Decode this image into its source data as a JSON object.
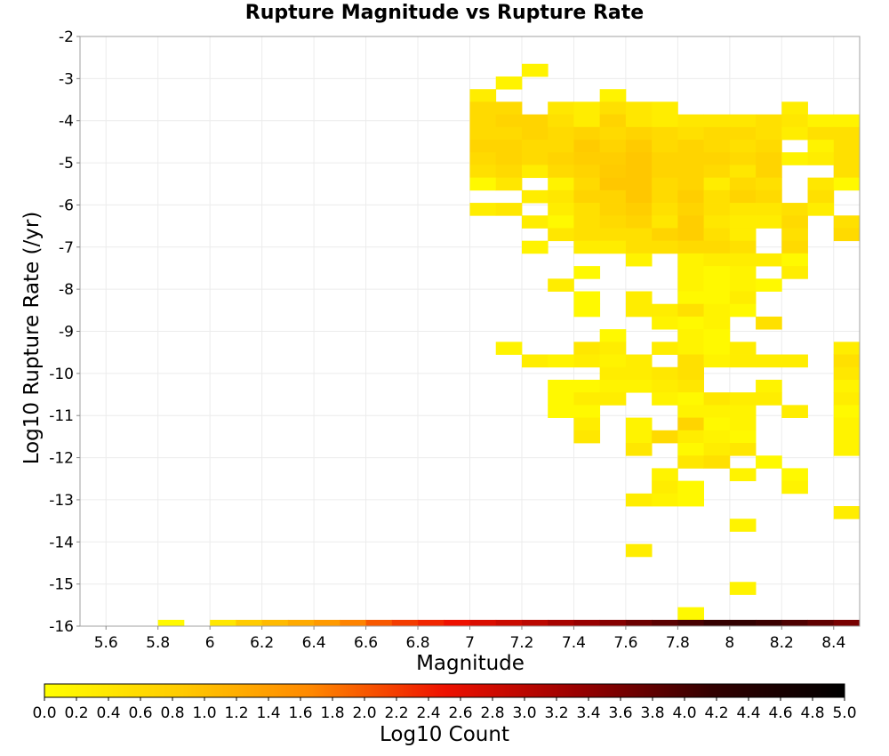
{
  "chart_data": {
    "type": "heatmap",
    "title": "Rupture Magnitude vs Rupture Rate",
    "xlabel": "Magnitude",
    "ylabel": "Log10 Rupture Rate (/yr)",
    "xlim": [
      5.5,
      8.5
    ],
    "ylim": [
      -16,
      -2
    ],
    "x_ticks": [
      "5.6",
      "5.8",
      "6",
      "6.2",
      "6.4",
      "6.6",
      "6.8",
      "7",
      "7.2",
      "7.4",
      "7.6",
      "7.8",
      "8",
      "8.2",
      "8.4"
    ],
    "y_ticks": [
      "-2",
      "-3",
      "-4",
      "-5",
      "-6",
      "-7",
      "-8",
      "-9",
      "-10",
      "-11",
      "-12",
      "-13",
      "-14",
      "-15",
      "-16"
    ],
    "bin_width_x": 0.1,
    "bin_height_y": 0.3,
    "grid": true,
    "colorbar": {
      "label": "Log10 Count",
      "range": [
        0,
        5
      ],
      "colors": [
        "#ffff00",
        "#ffcc00",
        "#ff8800",
        "#ee1100",
        "#990000",
        "#330000",
        "#000000"
      ],
      "ticks": [
        "0.0",
        "0.2",
        "0.4",
        "0.6",
        "0.8",
        "1.0",
        "1.2",
        "1.4",
        "1.6",
        "1.8",
        "2.0",
        "2.2",
        "2.4",
        "2.6",
        "2.8",
        "3.0",
        "3.2",
        "3.4",
        "3.6",
        "3.8",
        "4.0",
        "4.2",
        "4.4",
        "4.6",
        "4.8",
        "5.0"
      ]
    },
    "bottom_row": {
      "y": -16,
      "cells": [
        [
          5.8,
          0.1
        ],
        [
          6.0,
          0.4
        ],
        [
          6.1,
          0.85
        ],
        [
          6.2,
          1.05
        ],
        [
          6.3,
          1.25
        ],
        [
          6.4,
          1.45
        ],
        [
          6.5,
          1.7
        ],
        [
          6.6,
          2.0
        ],
        [
          6.7,
          2.2
        ],
        [
          6.8,
          2.35
        ],
        [
          6.9,
          2.5
        ],
        [
          7.0,
          2.7
        ],
        [
          7.1,
          2.85
        ],
        [
          7.2,
          3.0
        ],
        [
          7.3,
          3.2
        ],
        [
          7.4,
          3.35
        ],
        [
          7.5,
          3.5
        ],
        [
          7.6,
          3.7
        ],
        [
          7.7,
          3.85
        ],
        [
          7.8,
          4.0
        ],
        [
          7.9,
          4.15
        ],
        [
          8.0,
          4.2
        ],
        [
          8.1,
          4.1
        ],
        [
          8.2,
          3.95
        ],
        [
          8.3,
          3.8
        ],
        [
          8.4,
          3.6
        ]
      ]
    },
    "cells": [
      [
        7.2,
        -2.8,
        0.2
      ],
      [
        7.1,
        -3.1,
        0.2
      ],
      [
        7.0,
        -3.4,
        0.3
      ],
      [
        7.5,
        -3.4,
        0.2
      ],
      [
        7.0,
        -3.7,
        0.6
      ],
      [
        7.1,
        -3.7,
        0.6
      ],
      [
        7.3,
        -3.7,
        0.4
      ],
      [
        7.4,
        -3.7,
        0.3
      ],
      [
        7.5,
        -3.7,
        0.5
      ],
      [
        7.6,
        -3.7,
        0.4
      ],
      [
        7.7,
        -3.7,
        0.3
      ],
      [
        8.2,
        -3.7,
        0.3
      ],
      [
        7.0,
        -4.0,
        0.6
      ],
      [
        7.1,
        -4.0,
        0.7
      ],
      [
        7.2,
        -4.0,
        0.7
      ],
      [
        7.3,
        -4.0,
        0.5
      ],
      [
        7.4,
        -4.0,
        0.3
      ],
      [
        7.5,
        -4.0,
        0.7
      ],
      [
        7.6,
        -4.0,
        0.4
      ],
      [
        7.7,
        -4.0,
        0.3
      ],
      [
        7.8,
        -4.0,
        0.4
      ],
      [
        7.9,
        -4.0,
        0.4
      ],
      [
        8.0,
        -4.0,
        0.4
      ],
      [
        8.1,
        -4.0,
        0.5
      ],
      [
        8.2,
        -4.0,
        0.4
      ],
      [
        8.3,
        -4.0,
        0.2
      ],
      [
        8.4,
        -4.0,
        0.2
      ],
      [
        7.0,
        -4.3,
        0.6
      ],
      [
        7.1,
        -4.3,
        0.6
      ],
      [
        7.2,
        -4.3,
        0.7
      ],
      [
        7.3,
        -4.3,
        0.6
      ],
      [
        7.4,
        -4.3,
        0.7
      ],
      [
        7.5,
        -4.3,
        0.6
      ],
      [
        7.6,
        -4.3,
        0.7
      ],
      [
        7.7,
        -4.3,
        0.6
      ],
      [
        7.8,
        -4.3,
        0.5
      ],
      [
        7.9,
        -4.3,
        0.6
      ],
      [
        8.0,
        -4.3,
        0.6
      ],
      [
        8.1,
        -4.3,
        0.5
      ],
      [
        8.2,
        -4.3,
        0.3
      ],
      [
        8.3,
        -4.3,
        0.5
      ],
      [
        8.4,
        -4.3,
        0.5
      ],
      [
        7.0,
        -4.6,
        0.7
      ],
      [
        7.1,
        -4.6,
        0.7
      ],
      [
        7.2,
        -4.6,
        0.6
      ],
      [
        7.3,
        -4.6,
        0.6
      ],
      [
        7.4,
        -4.6,
        0.85
      ],
      [
        7.5,
        -4.6,
        0.7
      ],
      [
        7.6,
        -4.6,
        0.85
      ],
      [
        7.7,
        -4.6,
        0.6
      ],
      [
        7.8,
        -4.6,
        0.7
      ],
      [
        7.9,
        -4.6,
        0.6
      ],
      [
        8.0,
        -4.6,
        0.5
      ],
      [
        8.1,
        -4.6,
        0.6
      ],
      [
        8.3,
        -4.6,
        0.2
      ],
      [
        8.4,
        -4.6,
        0.5
      ],
      [
        7.0,
        -4.9,
        0.6
      ],
      [
        7.1,
        -4.9,
        0.7
      ],
      [
        7.2,
        -4.9,
        0.6
      ],
      [
        7.3,
        -4.9,
        0.7
      ],
      [
        7.4,
        -4.9,
        0.8
      ],
      [
        7.5,
        -4.9,
        0.8
      ],
      [
        7.6,
        -4.9,
        0.9
      ],
      [
        7.7,
        -4.9,
        0.7
      ],
      [
        7.8,
        -4.9,
        0.7
      ],
      [
        7.9,
        -4.9,
        0.7
      ],
      [
        8.0,
        -4.9,
        0.6
      ],
      [
        8.1,
        -4.9,
        0.7
      ],
      [
        8.2,
        -4.9,
        0.2
      ],
      [
        8.3,
        -4.9,
        0.3
      ],
      [
        8.4,
        -4.9,
        0.5
      ],
      [
        7.0,
        -5.2,
        0.5
      ],
      [
        7.1,
        -5.2,
        0.6
      ],
      [
        7.2,
        -5.2,
        0.3
      ],
      [
        7.3,
        -5.2,
        0.6
      ],
      [
        7.4,
        -5.2,
        0.7
      ],
      [
        7.5,
        -5.2,
        0.85
      ],
      [
        7.6,
        -5.2,
        0.9
      ],
      [
        7.7,
        -5.2,
        0.7
      ],
      [
        7.8,
        -5.2,
        0.7
      ],
      [
        7.9,
        -5.2,
        0.6
      ],
      [
        8.0,
        -5.2,
        0.4
      ],
      [
        8.1,
        -5.2,
        0.7
      ],
      [
        8.4,
        -5.2,
        0.5
      ],
      [
        7.0,
        -5.5,
        0.1
      ],
      [
        7.1,
        -5.5,
        0.4
      ],
      [
        7.3,
        -5.5,
        0.2
      ],
      [
        7.4,
        -5.5,
        0.6
      ],
      [
        7.5,
        -5.5,
        0.9
      ],
      [
        7.6,
        -5.5,
        0.9
      ],
      [
        7.7,
        -5.5,
        0.6
      ],
      [
        7.8,
        -5.5,
        0.7
      ],
      [
        7.9,
        -5.5,
        0.3
      ],
      [
        8.0,
        -5.5,
        0.6
      ],
      [
        8.1,
        -5.5,
        0.5
      ],
      [
        8.3,
        -5.5,
        0.4
      ],
      [
        8.4,
        -5.5,
        0.1
      ],
      [
        7.2,
        -5.8,
        0.3
      ],
      [
        7.3,
        -5.8,
        0.4
      ],
      [
        7.4,
        -5.8,
        0.7
      ],
      [
        7.5,
        -5.8,
        0.7
      ],
      [
        7.6,
        -5.8,
        0.9
      ],
      [
        7.7,
        -5.8,
        0.6
      ],
      [
        7.8,
        -5.8,
        0.8
      ],
      [
        7.9,
        -5.8,
        0.5
      ],
      [
        8.0,
        -5.8,
        0.7
      ],
      [
        8.1,
        -5.8,
        0.6
      ],
      [
        8.3,
        -5.8,
        0.5
      ],
      [
        7.0,
        -6.1,
        0.3
      ],
      [
        7.1,
        -6.1,
        0.4
      ],
      [
        7.3,
        -6.1,
        0.3
      ],
      [
        7.4,
        -6.1,
        0.5
      ],
      [
        7.5,
        -6.1,
        0.7
      ],
      [
        7.6,
        -6.1,
        0.8
      ],
      [
        7.7,
        -6.1,
        0.5
      ],
      [
        7.8,
        -6.1,
        0.7
      ],
      [
        7.9,
        -6.1,
        0.5
      ],
      [
        8.0,
        -6.1,
        0.4
      ],
      [
        8.1,
        -6.1,
        0.4
      ],
      [
        8.2,
        -6.1,
        0.5
      ],
      [
        8.3,
        -6.1,
        0.3
      ],
      [
        7.2,
        -6.4,
        0.3
      ],
      [
        7.3,
        -6.4,
        0.1
      ],
      [
        7.4,
        -6.4,
        0.5
      ],
      [
        7.5,
        -6.4,
        0.6
      ],
      [
        7.6,
        -6.4,
        0.7
      ],
      [
        7.7,
        -6.4,
        0.4
      ],
      [
        7.8,
        -6.4,
        0.8
      ],
      [
        7.9,
        -6.4,
        0.4
      ],
      [
        8.0,
        -6.4,
        0.3
      ],
      [
        8.1,
        -6.4,
        0.3
      ],
      [
        8.2,
        -6.4,
        0.6
      ],
      [
        8.4,
        -6.4,
        0.5
      ],
      [
        7.3,
        -6.7,
        0.4
      ],
      [
        7.4,
        -6.7,
        0.5
      ],
      [
        7.5,
        -6.7,
        0.5
      ],
      [
        7.6,
        -6.7,
        0.5
      ],
      [
        7.7,
        -6.7,
        0.7
      ],
      [
        7.8,
        -6.7,
        0.8
      ],
      [
        7.9,
        -6.7,
        0.5
      ],
      [
        8.0,
        -6.7,
        0.3
      ],
      [
        8.2,
        -6.7,
        0.5
      ],
      [
        8.4,
        -6.7,
        0.6
      ],
      [
        7.2,
        -7.0,
        0.2
      ],
      [
        7.4,
        -7.0,
        0.3
      ],
      [
        7.5,
        -7.0,
        0.3
      ],
      [
        7.6,
        -7.0,
        0.5
      ],
      [
        7.7,
        -7.0,
        0.5
      ],
      [
        7.8,
        -7.0,
        0.6
      ],
      [
        7.9,
        -7.0,
        0.6
      ],
      [
        8.0,
        -7.0,
        0.5
      ],
      [
        8.2,
        -7.0,
        0.6
      ],
      [
        7.6,
        -7.3,
        0.2
      ],
      [
        7.8,
        -7.3,
        0.2
      ],
      [
        7.9,
        -7.3,
        0.3
      ],
      [
        8.0,
        -7.3,
        0.3
      ],
      [
        8.1,
        -7.3,
        0.3
      ],
      [
        8.2,
        -7.3,
        0.1
      ],
      [
        7.4,
        -7.6,
        0.1
      ],
      [
        7.8,
        -7.6,
        0.2
      ],
      [
        7.9,
        -7.6,
        0.1
      ],
      [
        8.0,
        -7.6,
        0.2
      ],
      [
        8.2,
        -7.6,
        0.3
      ],
      [
        7.3,
        -7.9,
        0.3
      ],
      [
        7.8,
        -7.9,
        0.2
      ],
      [
        7.9,
        -7.9,
        0.1
      ],
      [
        8.0,
        -7.9,
        0.2
      ],
      [
        8.1,
        -7.9,
        0.1
      ],
      [
        7.4,
        -8.2,
        0.1
      ],
      [
        7.6,
        -8.2,
        0.3
      ],
      [
        7.8,
        -8.2,
        0.1
      ],
      [
        7.9,
        -8.2,
        0.1
      ],
      [
        8.0,
        -8.2,
        0.3
      ],
      [
        7.4,
        -8.5,
        0.1
      ],
      [
        7.6,
        -8.5,
        0.3
      ],
      [
        7.7,
        -8.5,
        0.3
      ],
      [
        7.8,
        -8.5,
        0.5
      ],
      [
        7.9,
        -8.5,
        0.2
      ],
      [
        8.0,
        -8.5,
        0.1
      ],
      [
        7.7,
        -8.8,
        0.2
      ],
      [
        7.8,
        -8.8,
        0.1
      ],
      [
        7.9,
        -8.8,
        0.2
      ],
      [
        8.1,
        -8.8,
        0.5
      ],
      [
        7.5,
        -9.1,
        0.1
      ],
      [
        7.8,
        -9.1,
        0.2
      ],
      [
        7.9,
        -9.1,
        0.1
      ],
      [
        7.1,
        -9.4,
        0.2
      ],
      [
        7.4,
        -9.4,
        0.4
      ],
      [
        7.5,
        -9.4,
        0.3
      ],
      [
        7.7,
        -9.4,
        0.3
      ],
      [
        7.8,
        -9.4,
        0.2
      ],
      [
        7.9,
        -9.4,
        0.1
      ],
      [
        8.0,
        -9.4,
        0.3
      ],
      [
        8.4,
        -9.4,
        0.3
      ],
      [
        7.2,
        -9.7,
        0.3
      ],
      [
        7.3,
        -9.7,
        0.2
      ],
      [
        7.4,
        -9.7,
        0.3
      ],
      [
        7.5,
        -9.7,
        0.2
      ],
      [
        7.6,
        -9.7,
        0.3
      ],
      [
        7.8,
        -9.7,
        0.5
      ],
      [
        7.9,
        -9.7,
        0.2
      ],
      [
        8.0,
        -9.7,
        0.3
      ],
      [
        8.1,
        -9.7,
        0.3
      ],
      [
        8.2,
        -9.7,
        0.3
      ],
      [
        8.4,
        -9.7,
        0.5
      ],
      [
        7.5,
        -10.0,
        0.3
      ],
      [
        7.6,
        -10.0,
        0.3
      ],
      [
        7.7,
        -10.0,
        0.4
      ],
      [
        7.8,
        -10.0,
        0.5
      ],
      [
        8.4,
        -10.0,
        0.4
      ],
      [
        7.3,
        -10.3,
        0.1
      ],
      [
        7.4,
        -10.3,
        0.1
      ],
      [
        7.5,
        -10.3,
        0.2
      ],
      [
        7.6,
        -10.3,
        0.2
      ],
      [
        7.7,
        -10.3,
        0.3
      ],
      [
        7.8,
        -10.3,
        0.4
      ],
      [
        8.1,
        -10.3,
        0.2
      ],
      [
        8.4,
        -10.3,
        0.2
      ],
      [
        7.3,
        -10.6,
        0.1
      ],
      [
        7.4,
        -10.6,
        0.3
      ],
      [
        7.5,
        -10.6,
        0.3
      ],
      [
        7.7,
        -10.6,
        0.2
      ],
      [
        7.8,
        -10.6,
        0.1
      ],
      [
        7.9,
        -10.6,
        0.4
      ],
      [
        8.0,
        -10.6,
        0.3
      ],
      [
        8.1,
        -10.6,
        0.3
      ],
      [
        8.4,
        -10.6,
        0.3
      ],
      [
        7.3,
        -10.9,
        0.1
      ],
      [
        7.4,
        -10.9,
        0.1
      ],
      [
        7.8,
        -10.9,
        0.2
      ],
      [
        7.9,
        -10.9,
        0.2
      ],
      [
        8.0,
        -10.9,
        0.2
      ],
      [
        8.2,
        -10.9,
        0.3
      ],
      [
        8.4,
        -10.9,
        0.1
      ],
      [
        7.4,
        -11.2,
        0.3
      ],
      [
        7.6,
        -11.2,
        0.2
      ],
      [
        7.8,
        -11.2,
        0.7
      ],
      [
        7.9,
        -11.2,
        0.1
      ],
      [
        8.0,
        -11.2,
        0.2
      ],
      [
        8.4,
        -11.2,
        0.2
      ],
      [
        7.4,
        -11.5,
        0.4
      ],
      [
        7.6,
        -11.5,
        0.2
      ],
      [
        7.7,
        -11.5,
        0.6
      ],
      [
        7.8,
        -11.5,
        0.3
      ],
      [
        7.9,
        -11.5,
        0.2
      ],
      [
        8.0,
        -11.5,
        0.1
      ],
      [
        8.4,
        -11.5,
        0.2
      ],
      [
        7.6,
        -11.8,
        0.4
      ],
      [
        7.8,
        -11.8,
        0.1
      ],
      [
        7.9,
        -11.8,
        0.3
      ],
      [
        8.0,
        -11.8,
        0.4
      ],
      [
        8.4,
        -11.8,
        0.2
      ],
      [
        7.8,
        -12.1,
        0.4
      ],
      [
        7.9,
        -12.1,
        0.5
      ],
      [
        8.1,
        -12.1,
        0.1
      ],
      [
        7.7,
        -12.4,
        0.2
      ],
      [
        8.0,
        -12.4,
        0.2
      ],
      [
        8.2,
        -12.4,
        0.1
      ],
      [
        7.7,
        -12.7,
        0.3
      ],
      [
        7.8,
        -12.7,
        0.1
      ],
      [
        8.2,
        -12.7,
        0.2
      ],
      [
        7.6,
        -13.0,
        0.3
      ],
      [
        7.7,
        -13.0,
        0.2
      ],
      [
        7.8,
        -13.0,
        0.1
      ],
      [
        8.4,
        -13.3,
        0.3
      ],
      [
        8.0,
        -13.6,
        0.2
      ],
      [
        7.6,
        -14.2,
        0.3
      ],
      [
        8.0,
        -15.1,
        0.2
      ],
      [
        7.8,
        -15.7,
        0.1
      ]
    ]
  }
}
